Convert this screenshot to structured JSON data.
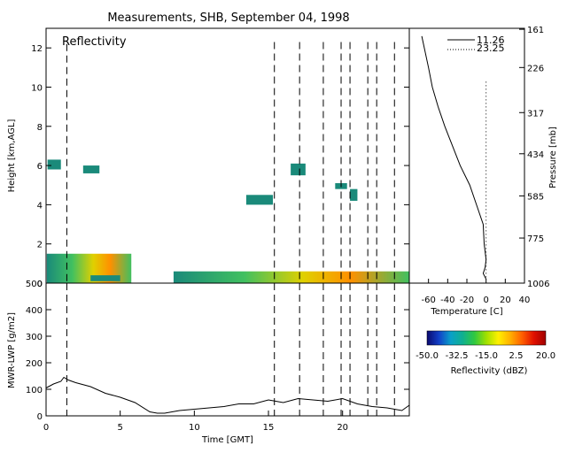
{
  "title": "Measurements, SHB, September 04, 1998",
  "colors": {
    "background": "#ffffff",
    "axes": "#000000",
    "echo_low": "#1a8a7a",
    "echo_mid": "#40c060",
    "echo_high": "#e0d000",
    "echo_peak": "#ff9000"
  },
  "chart_data": [
    {
      "id": "reflectivity",
      "type": "heatmap",
      "panel_label": "Reflectivity",
      "ylabel": "Height [km,AGL]",
      "xlim": [
        0,
        24.5
      ],
      "ylim": [
        0,
        13
      ],
      "y_ticks": [
        0,
        2,
        4,
        6,
        8,
        10,
        12
      ],
      "vertical_dashed_lines_hours": [
        1.4,
        15.4,
        17.1,
        18.7,
        19.9,
        20.5,
        21.7,
        22.3,
        23.5
      ],
      "echo_regions": [
        {
          "x": [
            0.05,
            5.75
          ],
          "y": [
            0,
            1.5
          ],
          "intensity": "mixed"
        },
        {
          "x": [
            3.0,
            5.0
          ],
          "y": [
            0.1,
            0.4
          ],
          "intensity": "low"
        },
        {
          "x": [
            8.6,
            24.5
          ],
          "y": [
            0,
            0.6
          ],
          "intensity": "mixed"
        },
        {
          "x": [
            0.1,
            1.0
          ],
          "y": [
            5.8,
            6.3
          ],
          "intensity": "low"
        },
        {
          "x": [
            2.5,
            3.6
          ],
          "y": [
            5.6,
            6.0
          ],
          "intensity": "low"
        },
        {
          "x": [
            13.5,
            15.3
          ],
          "y": [
            4.0,
            4.5
          ],
          "intensity": "low"
        },
        {
          "x": [
            16.5,
            17.5
          ],
          "y": [
            5.5,
            6.1
          ],
          "intensity": "low"
        },
        {
          "x": [
            19.5,
            20.3
          ],
          "y": [
            4.8,
            5.1
          ],
          "intensity": "low"
        },
        {
          "x": [
            20.5,
            21.0
          ],
          "y": [
            4.2,
            4.8
          ],
          "intensity": "low"
        }
      ]
    },
    {
      "id": "temperature-profile",
      "type": "line",
      "xlabel": "Temperature [C]",
      "ylabel": "Pressure [mb]",
      "xlim": [
        -80,
        40
      ],
      "x_ticks": [
        -60,
        -40,
        -20,
        0,
        20,
        40
      ],
      "height_km_lim": [
        0,
        13
      ],
      "pressure_tick_labels": [
        "1006",
        "775",
        "585",
        "434",
        "317",
        "226",
        "161"
      ],
      "pressure_tick_heights_km": [
        0,
        2.3,
        4.45,
        6.6,
        8.7,
        11.0,
        12.95
      ],
      "series": [
        {
          "name": "11.26",
          "style": "solid",
          "x": [
            0,
            -3,
            -1,
            0,
            -2,
            -3,
            -10,
            -17,
            -27,
            -35,
            -43,
            -50,
            -56,
            -60,
            -67
          ],
          "y": [
            0.2,
            0.5,
            0.8,
            1.2,
            2.0,
            3.0,
            4.0,
            5.0,
            6.0,
            7.0,
            8.0,
            9.0,
            10.0,
            11.0,
            12.6
          ]
        },
        {
          "name": "23.25",
          "style": "dotted",
          "x": [
            0,
            0,
            0,
            0,
            0
          ],
          "y": [
            0.3,
            3.0,
            6.0,
            9.0,
            10.4
          ]
        }
      ]
    },
    {
      "id": "mwr-lwp",
      "type": "line",
      "xlabel": "Time [GMT]",
      "ylabel": "MWR-LWP [g/m2]",
      "xlim": [
        0,
        24.5
      ],
      "ylim": [
        0,
        500
      ],
      "x_ticks": [
        0,
        5,
        10,
        15,
        20
      ],
      "y_ticks": [
        0,
        100,
        200,
        300,
        400,
        500
      ],
      "x": [
        0,
        0.5,
        1.0,
        1.2,
        1.5,
        2.0,
        3.0,
        4.0,
        5.0,
        6.0,
        7.0,
        7.5,
        8.0,
        9.0,
        10.0,
        11.0,
        12.0,
        13.0,
        14.0,
        15.0,
        15.5,
        16.0,
        17.0,
        18.0,
        19.0,
        20.0,
        21.0,
        22.0,
        23.0,
        23.5,
        24.0,
        24.5
      ],
      "y": [
        105,
        120,
        130,
        145,
        135,
        125,
        110,
        85,
        70,
        50,
        15,
        10,
        10,
        20,
        25,
        30,
        35,
        45,
        45,
        60,
        55,
        50,
        65,
        60,
        55,
        65,
        45,
        35,
        30,
        25,
        20,
        40
      ]
    },
    {
      "id": "reflectivity-colorbar",
      "type": "heatmap",
      "label": "Reflectivity (dBZ)",
      "vmin": -50,
      "vmax": 20,
      "tick_labels": [
        "-50.0",
        "-32.5",
        "-15.0",
        "2.5",
        "20.0"
      ],
      "colormap": [
        "#0a0a6e",
        "#1240c8",
        "#0aa0c8",
        "#10b090",
        "#30c840",
        "#a0e000",
        "#fff000",
        "#ffb000",
        "#ff6000",
        "#e01000",
        "#a00000"
      ]
    }
  ]
}
